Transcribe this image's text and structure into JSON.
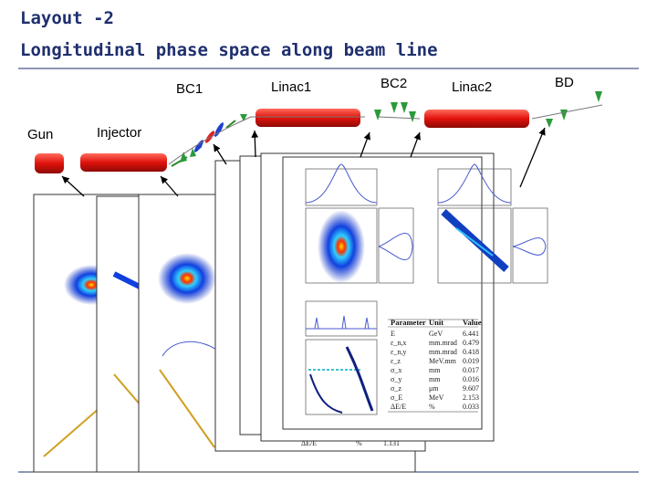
{
  "header": {
    "title": [
      "Layout -2",
      "Longitudinal phase space along beam line"
    ]
  },
  "beamline": {
    "labels": [
      "Gun",
      "Injector",
      "BC1",
      "Linac1",
      "BC2",
      "Linac2",
      "BD"
    ]
  },
  "back_panel_note": [
    "ΔE/E",
    "%",
    "1.131"
  ],
  "table": {
    "header": [
      "Parameter",
      "Unit",
      "Value"
    ],
    "rows": [
      [
        "E",
        "GeV",
        "6.441"
      ],
      [
        "ε_n,x",
        "mm.mrad",
        "0.479"
      ],
      [
        "ε_n,y",
        "mm.mrad",
        "0.418"
      ],
      [
        "ε_z",
        "MeV.mm",
        "0.019"
      ],
      [
        "σ_x",
        "mm",
        "0.017"
      ],
      [
        "σ_y",
        "mm",
        "0.016"
      ],
      [
        "σ_z",
        "μm",
        "9.607"
      ],
      [
        "σ_E",
        "MeV",
        "2.153"
      ],
      [
        "ΔE/E",
        "%",
        "0.033"
      ]
    ]
  }
}
